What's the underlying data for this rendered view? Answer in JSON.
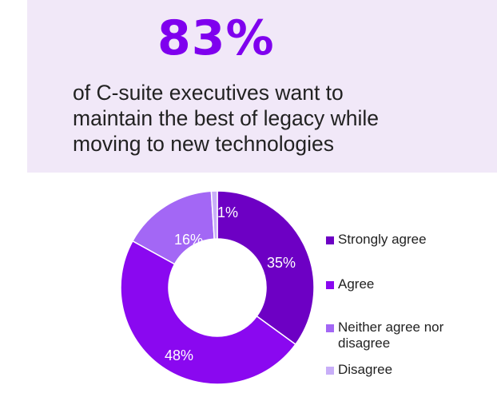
{
  "hero": {
    "stat": "83%",
    "lines": [
      "of C-suite executives want to",
      "maintain the best of legacy while",
      "moving to new technologies"
    ]
  },
  "chart_data": {
    "type": "pie",
    "style": "donut",
    "categories": [
      "Strongly agree",
      "Agree",
      "Neither agree nor disagree",
      "Disagree"
    ],
    "values": [
      35,
      48,
      16,
      1
    ],
    "value_labels": [
      "35%",
      "48%",
      "16%",
      "1%"
    ],
    "colors": [
      "#6d00c4",
      "#8a08f0",
      "#a367f5",
      "#c8aef8"
    ],
    "legend_position": "right",
    "title": ""
  },
  "legend": [
    {
      "label": "Strongly agree",
      "color": "#6d00c4"
    },
    {
      "label": "Agree",
      "color": "#8a08f0"
    },
    {
      "label": "Neither agree nor disagree",
      "color": "#a367f5"
    },
    {
      "label": "Disagree",
      "color": "#c8aef8"
    }
  ],
  "colors": {
    "panel_background": "#f1e8f8",
    "stat": "#7f00ee",
    "text": "#222222"
  }
}
